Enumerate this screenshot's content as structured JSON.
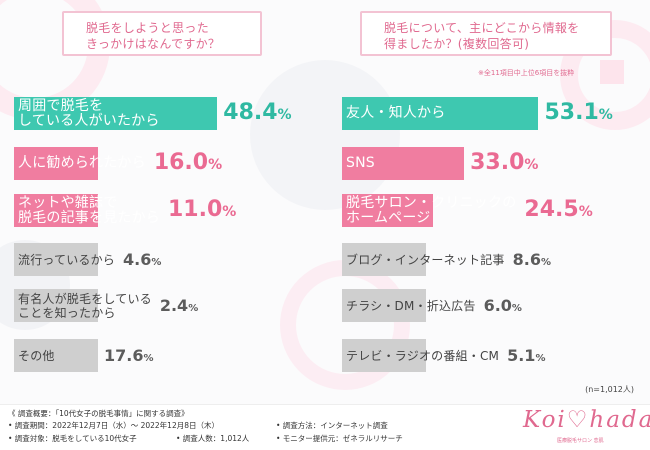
{
  "colors": {
    "left_top_bar": "#3ec8b0",
    "pink_bar": "#f07da0",
    "gray_bar": "#cfcfcf",
    "teal_value": "#2fb9a2",
    "pink_value": "#ea6a92",
    "gray_value": "#5c5c5c",
    "question_text": "#e0698f"
  },
  "left_question": {
    "line1": "脱毛をしようと思った",
    "line2": "きっかけはなんですか？"
  },
  "right_question": {
    "line1": "脱毛について、主にどこから情報を",
    "line2": "得ましたか？(複数回答可)"
  },
  "right_note": "※全11項目中上位6項目を抜粋",
  "chart_data": [
    {
      "type": "bar",
      "orientation": "horizontal",
      "title": "脱毛をしようと思ったきっかけはなんですか？",
      "unit": "%",
      "categories": [
        [
          "周囲で脱毛を",
          "している人がいたから"
        ],
        [
          "人に勧められたから"
        ],
        [
          "ネットや雑誌で",
          "脱毛の記事を見たから"
        ],
        [
          "流行っているから"
        ],
        [
          "有名人が脱毛をしている",
          "ことを知ったから"
        ],
        [
          "その他"
        ]
      ],
      "values": [
        48.4,
        16.0,
        11.0,
        4.6,
        2.4,
        17.6
      ],
      "value_labels": [
        "48.4%",
        "16.0%",
        "11.0%",
        "4.6%",
        "2.4%",
        "17.6%"
      ]
    },
    {
      "type": "bar",
      "orientation": "horizontal",
      "title": "脱毛について、主にどこから情報を得ましたか？(複数回答可)",
      "unit": "%",
      "categories": [
        [
          "友人・知人から"
        ],
        [
          "SNS"
        ],
        [
          "脱毛サロン・クリニックの",
          "ホームページ"
        ],
        [
          "ブログ・インターネット記事"
        ],
        [
          "チラシ・DM・折込広告"
        ],
        [
          "テレビ・ラジオの番組・CM"
        ]
      ],
      "values": [
        53.1,
        33.0,
        24.5,
        8.6,
        6.0,
        5.1
      ],
      "value_labels": [
        "53.1%",
        "33.0%",
        "24.5%",
        "8.6%",
        "6.0%",
        "5.1%"
      ]
    }
  ],
  "sample_size": "(n=1,012人)",
  "footer": {
    "overview": "《 調査概要：「10代女子の脱毛事情」に関する調査》",
    "period": "• 調査期間：2022年12月7日（水）〜 2022年12月8日（木）",
    "method": "• 調査方法：インターネット調査",
    "target": "• 調査対象：脱毛をしている10代女子",
    "count": "• 調査人数：1,012人",
    "provider": "• モニター提供元：ゼネラルリサーチ"
  },
  "logo": {
    "text": "Koi♡hada",
    "sub": "医療脱毛サロン 恋肌"
  }
}
